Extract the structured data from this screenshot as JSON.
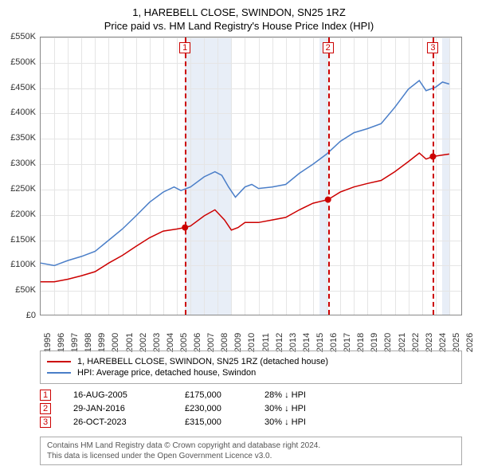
{
  "title_line1": "1, HAREBELL CLOSE, SWINDON, SN25 1RZ",
  "title_line2": "Price paid vs. HM Land Registry's House Price Index (HPI)",
  "chart": {
    "type": "line",
    "xlim": [
      1995,
      2026
    ],
    "ylim": [
      0,
      550000
    ],
    "ytick_step": 50000,
    "xtick_step": 1,
    "ylabels": [
      "£0",
      "£50K",
      "£100K",
      "£150K",
      "£200K",
      "£250K",
      "£300K",
      "£350K",
      "£400K",
      "£450K",
      "£500K",
      "£550K"
    ],
    "xlabels_start": 1995,
    "xlabels_end": 2026,
    "background_color": "#ffffff",
    "grid_color": "#e5e5e5",
    "border_color": "#888888",
    "shade_color": "#e8eef7",
    "shade_zones": [
      [
        2005.6,
        2009.0
      ],
      [
        2015.5,
        2016.1
      ],
      [
        2024.5,
        2025.0
      ]
    ],
    "series": [
      {
        "name": "price_paid",
        "label": "1, HAREBELL CLOSE, SWINDON, SN25 1RZ (detached house)",
        "color": "#cc0000",
        "line_width": 1.5,
        "data": [
          [
            1995.0,
            68000
          ],
          [
            1996.0,
            68000
          ],
          [
            1997.0,
            73000
          ],
          [
            1998.0,
            80000
          ],
          [
            1999.0,
            88000
          ],
          [
            2000.0,
            105000
          ],
          [
            2001.0,
            120000
          ],
          [
            2002.0,
            138000
          ],
          [
            2003.0,
            155000
          ],
          [
            2004.0,
            168000
          ],
          [
            2005.0,
            172000
          ],
          [
            2005.6,
            175000
          ],
          [
            2006.0,
            178000
          ],
          [
            2007.0,
            198000
          ],
          [
            2007.8,
            210000
          ],
          [
            2008.5,
            190000
          ],
          [
            2009.0,
            170000
          ],
          [
            2009.5,
            175000
          ],
          [
            2010.0,
            185000
          ],
          [
            2011.0,
            185000
          ],
          [
            2012.0,
            190000
          ],
          [
            2013.0,
            195000
          ],
          [
            2014.0,
            210000
          ],
          [
            2015.0,
            223000
          ],
          [
            2016.1,
            230000
          ],
          [
            2017.0,
            245000
          ],
          [
            2018.0,
            255000
          ],
          [
            2019.0,
            262000
          ],
          [
            2020.0,
            268000
          ],
          [
            2021.0,
            285000
          ],
          [
            2022.0,
            305000
          ],
          [
            2022.8,
            322000
          ],
          [
            2023.3,
            310000
          ],
          [
            2023.8,
            315000
          ],
          [
            2024.5,
            318000
          ],
          [
            2025.0,
            320000
          ]
        ]
      },
      {
        "name": "hpi",
        "label": "HPI: Average price, detached house, Swindon",
        "color": "#4a7ec8",
        "line_width": 1.5,
        "data": [
          [
            1995.0,
            105000
          ],
          [
            1996.0,
            100000
          ],
          [
            1997.0,
            110000
          ],
          [
            1998.0,
            118000
          ],
          [
            1999.0,
            128000
          ],
          [
            2000.0,
            150000
          ],
          [
            2001.0,
            172000
          ],
          [
            2002.0,
            198000
          ],
          [
            2003.0,
            225000
          ],
          [
            2004.0,
            245000
          ],
          [
            2004.8,
            255000
          ],
          [
            2005.3,
            248000
          ],
          [
            2006.0,
            255000
          ],
          [
            2007.0,
            275000
          ],
          [
            2007.8,
            285000
          ],
          [
            2008.3,
            278000
          ],
          [
            2008.8,
            255000
          ],
          [
            2009.3,
            235000
          ],
          [
            2010.0,
            255000
          ],
          [
            2010.5,
            260000
          ],
          [
            2011.0,
            252000
          ],
          [
            2012.0,
            255000
          ],
          [
            2013.0,
            260000
          ],
          [
            2014.0,
            282000
          ],
          [
            2015.0,
            300000
          ],
          [
            2016.0,
            320000
          ],
          [
            2017.0,
            345000
          ],
          [
            2018.0,
            362000
          ],
          [
            2019.0,
            370000
          ],
          [
            2020.0,
            380000
          ],
          [
            2021.0,
            412000
          ],
          [
            2022.0,
            448000
          ],
          [
            2022.8,
            465000
          ],
          [
            2023.3,
            445000
          ],
          [
            2024.0,
            452000
          ],
          [
            2024.5,
            462000
          ],
          [
            2025.0,
            458000
          ]
        ]
      }
    ],
    "markers": [
      {
        "num": "1",
        "x": 2005.6,
        "price_y": 175000
      },
      {
        "num": "2",
        "x": 2016.1,
        "price_y": 230000
      },
      {
        "num": "3",
        "x": 2023.8,
        "price_y": 315000
      }
    ]
  },
  "legend": {
    "item1_color": "#cc0000",
    "item1_label": "1, HAREBELL CLOSE, SWINDON, SN25 1RZ (detached house)",
    "item2_color": "#4a7ec8",
    "item2_label": "HPI: Average price, detached house, Swindon"
  },
  "events": [
    {
      "num": "1",
      "date": "16-AUG-2005",
      "price": "£175,000",
      "delta": "28% ↓ HPI"
    },
    {
      "num": "2",
      "date": "29-JAN-2016",
      "price": "£230,000",
      "delta": "30% ↓ HPI"
    },
    {
      "num": "3",
      "date": "26-OCT-2023",
      "price": "£315,000",
      "delta": "30% ↓ HPI"
    }
  ],
  "footer_line1": "Contains HM Land Registry data © Crown copyright and database right 2024.",
  "footer_line2": "This data is licensed under the Open Government Licence v3.0."
}
